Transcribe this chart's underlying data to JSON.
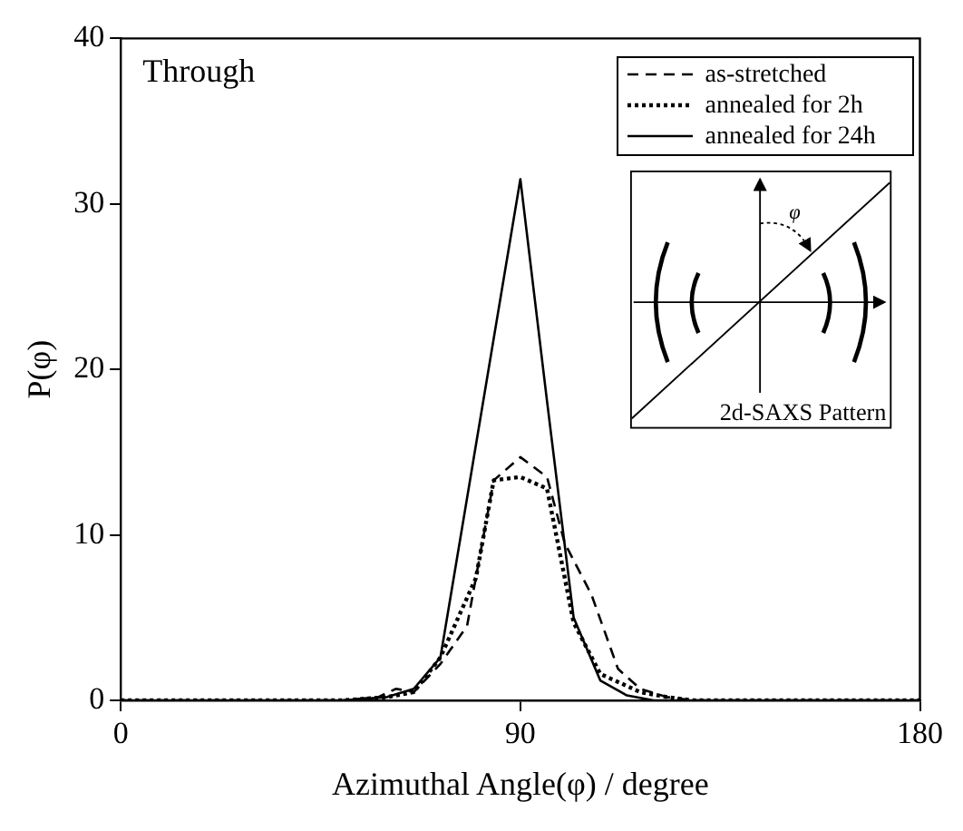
{
  "chart_data": {
    "type": "line",
    "xlabel": "Azimuthal Angle(φ) / degree",
    "ylabel": "P(φ)",
    "xlim": [
      0,
      180
    ],
    "xticks": [
      0,
      90,
      180
    ],
    "ylim": [
      0,
      40
    ],
    "yticks": [
      0,
      10,
      20,
      30,
      40
    ],
    "grid": false,
    "legend": "top right",
    "marker": "none",
    "annotations": [
      "Through",
      "2d-SAXS Pattern",
      "φ"
    ],
    "series": [
      {
        "name": "as-stretched",
        "color": "#000000",
        "line_style": "dashed",
        "x": [
          0,
          50,
          58,
          62,
          66,
          72,
          78,
          84,
          90,
          96,
          100,
          106,
          112,
          117,
          123,
          129,
          180
        ],
        "values": [
          0,
          0,
          0.2,
          0.7,
          0.5,
          2.2,
          4.5,
          13.3,
          14.7,
          13.5,
          9.5,
          6.4,
          1.9,
          0.7,
          0.2,
          0,
          0
        ]
      },
      {
        "name": "annealed for 2h",
        "color": "#000000",
        "line_style": "dotted",
        "x": [
          0,
          50,
          60,
          66,
          72,
          80,
          84,
          90,
          96,
          100,
          102,
          108,
          117,
          123,
          129,
          180
        ],
        "values": [
          0,
          0,
          0.2,
          0.5,
          2.6,
          7.4,
          13.3,
          13.5,
          12.8,
          7.4,
          4.7,
          1.6,
          0.5,
          0.2,
          0,
          0
        ]
      },
      {
        "name": "annealed for 24h",
        "color": "#000000",
        "line_style": "solid",
        "x": [
          0,
          50,
          60,
          66,
          72,
          90,
          96,
          102,
          108,
          114,
          120,
          180
        ],
        "values": [
          0,
          0,
          0.2,
          0.7,
          2.6,
          31.5,
          18.1,
          5,
          1.2,
          0.3,
          0,
          0
        ]
      }
    ]
  }
}
